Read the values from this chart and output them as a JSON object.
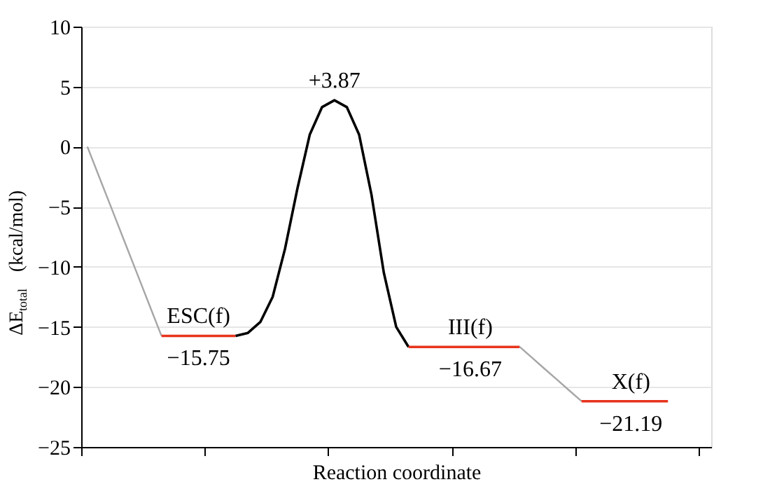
{
  "chart_data": {
    "type": "line",
    "xlabel": "Reaction coordinate",
    "ylabel": "ΔE$_{total}$ (kcal/mol)",
    "categories": [
      null,
      null,
      null,
      null,
      null,
      null,
      null,
      null,
      null,
      null,
      null,
      null,
      null,
      null,
      null,
      null,
      null,
      null,
      null,
      null,
      null,
      null,
      null,
      null,
      null,
      null,
      null,
      null,
      null,
      null,
      null,
      null,
      null,
      null,
      null,
      null,
      null,
      null,
      null,
      null,
      null,
      null,
      null,
      null,
      null,
      null,
      null,
      null,
      null,
      null,
      null
    ],
    "ylim": [
      -25,
      10
    ],
    "yticks": [
      {
        "value": -25,
        "label": "−25"
      },
      {
        "value": -20,
        "label": "−20"
      },
      {
        "value": -15,
        "label": "−15"
      },
      {
        "value": -10,
        "label": "−10"
      },
      {
        "value": -5,
        "label": "−5"
      },
      0,
      5,
      10
    ],
    "grid": "y",
    "tick_labels": "y",
    "line_style": "solid",
    "series": [
      {
        "color": "#a6a6a6",
        "values": [
          0,
          -2.63,
          -5.25,
          -7.88,
          -10.5,
          -13.13,
          -15.75,
          null,
          null,
          null,
          null,
          null,
          null,
          null,
          null,
          null,
          null,
          null,
          null,
          null,
          null,
          null,
          null,
          null,
          null,
          null,
          null,
          null,
          null,
          null,
          null,
          null,
          null,
          null,
          null,
          null,
          null,
          null,
          null,
          null,
          null,
          null,
          null,
          null,
          null,
          null,
          null,
          null,
          null,
          null,
          null
        ]
      },
      {
        "name": "ESC(f)",
        "color": "#e8341c",
        "values": [
          null,
          null,
          null,
          null,
          null,
          null,
          -15.75,
          -15.75,
          -15.75,
          -15.75,
          -15.75,
          -15.75,
          -15.75,
          null,
          null,
          null,
          null,
          null,
          null,
          null,
          null,
          null,
          null,
          null,
          null,
          null,
          null,
          null,
          null,
          null,
          null,
          null,
          null,
          null,
          null,
          null,
          null,
          null,
          null,
          null,
          null,
          null,
          null,
          null,
          null,
          null,
          null,
          null,
          null,
          null,
          null
        ],
        "value_labels": [
          null,
          null,
          null,
          null,
          null,
          null,
          null,
          null,
          null,
          "−15.75",
          null,
          null,
          null,
          null,
          null,
          null,
          null,
          null,
          null,
          null,
          null,
          null,
          null,
          null,
          null,
          null,
          null,
          null,
          null,
          null,
          null,
          null,
          null,
          null,
          null,
          null,
          null,
          null,
          null,
          null,
          null,
          null,
          null,
          null,
          null,
          null,
          null,
          null,
          null,
          null,
          null
        ]
      },
      {
        "color": "#000000",
        "values": [
          null,
          null,
          null,
          null,
          null,
          null,
          null,
          null,
          null,
          null,
          null,
          null,
          -15.75,
          -15.5,
          -14.6,
          -12.5,
          -8.5,
          -3.5,
          1,
          3.3,
          3.87,
          3.3,
          1,
          -4,
          -10.5,
          -15,
          -16.67,
          null,
          null,
          null,
          null,
          null,
          null,
          null,
          null,
          null,
          null,
          null,
          null,
          null,
          null,
          null,
          null,
          null,
          null,
          null,
          null,
          null,
          null,
          null,
          null
        ],
        "value_labels": [
          null,
          null,
          null,
          null,
          null,
          null,
          null,
          null,
          null,
          null,
          null,
          null,
          null,
          null,
          null,
          null,
          null,
          null,
          null,
          null,
          "+3.87",
          null,
          null,
          null,
          null,
          null,
          null,
          null,
          null,
          null,
          null,
          null,
          null,
          null,
          null,
          null,
          null,
          null,
          null,
          null,
          null,
          null,
          null,
          null,
          null,
          null,
          null,
          null,
          null,
          null,
          null
        ]
      },
      {
        "name": "III(f)",
        "color": "#e8341c",
        "values": [
          null,
          null,
          null,
          null,
          null,
          null,
          null,
          null,
          null,
          null,
          null,
          null,
          null,
          null,
          null,
          null,
          null,
          null,
          null,
          null,
          null,
          null,
          null,
          null,
          null,
          null,
          -16.67,
          -16.67,
          -16.67,
          -16.67,
          -16.67,
          -16.67,
          -16.67,
          -16.67,
          -16.67,
          -16.67,
          null,
          null,
          null,
          null,
          null,
          null,
          null,
          null,
          null,
          null,
          null,
          null,
          null,
          null,
          null
        ],
        "value_labels": [
          null,
          null,
          null,
          null,
          null,
          null,
          null,
          null,
          null,
          null,
          null,
          null,
          null,
          null,
          null,
          null,
          null,
          null,
          null,
          null,
          null,
          null,
          null,
          null,
          null,
          null,
          null,
          null,
          null,
          null,
          null,
          "−16.67",
          null,
          null,
          null,
          null,
          null,
          null,
          null,
          null,
          null,
          null,
          null,
          null,
          null,
          null,
          null,
          null,
          null,
          null,
          null
        ]
      },
      {
        "color": "#a6a6a6",
        "values": [
          null,
          null,
          null,
          null,
          null,
          null,
          null,
          null,
          null,
          null,
          null,
          null,
          null,
          null,
          null,
          null,
          null,
          null,
          null,
          null,
          null,
          null,
          null,
          null,
          null,
          null,
          null,
          null,
          null,
          null,
          null,
          null,
          null,
          null,
          null,
          -16.67,
          -17.57,
          -18.48,
          -19.38,
          -20.29,
          -21.19,
          null,
          null,
          null,
          null,
          null,
          null,
          null,
          null,
          null,
          null
        ]
      },
      {
        "name": "X(f)",
        "color": "#e8341c",
        "values": [
          null,
          null,
          null,
          null,
          null,
          null,
          null,
          null,
          null,
          null,
          null,
          null,
          null,
          null,
          null,
          null,
          null,
          null,
          null,
          null,
          null,
          null,
          null,
          null,
          null,
          null,
          null,
          null,
          null,
          null,
          null,
          null,
          null,
          null,
          null,
          null,
          null,
          null,
          null,
          null,
          -21.19,
          -21.19,
          -21.19,
          -21.19,
          -21.19,
          -21.19,
          -21.19,
          -21.19,
          null,
          null,
          null
        ],
        "value_labels": [
          null,
          null,
          null,
          null,
          null,
          null,
          null,
          null,
          null,
          null,
          null,
          null,
          null,
          null,
          null,
          null,
          null,
          null,
          null,
          null,
          null,
          null,
          null,
          null,
          null,
          null,
          null,
          null,
          null,
          null,
          null,
          null,
          null,
          null,
          null,
          null,
          null,
          null,
          null,
          null,
          null,
          null,
          null,
          null,
          "−21.19",
          null,
          null,
          null,
          null,
          null,
          null
        ]
      }
    ]
  }
}
